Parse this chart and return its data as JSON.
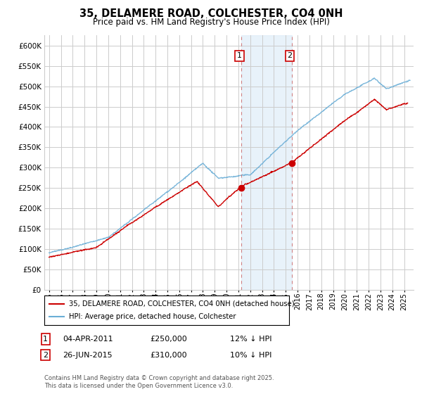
{
  "title": "35, DELAMERE ROAD, COLCHESTER, CO4 0NH",
  "subtitle": "Price paid vs. HM Land Registry's House Price Index (HPI)",
  "ytick_values": [
    0,
    50000,
    100000,
    150000,
    200000,
    250000,
    300000,
    350000,
    400000,
    450000,
    500000,
    550000,
    600000
  ],
  "ylim": [
    0,
    625000
  ],
  "hpi_color": "#6baed6",
  "price_color": "#cc0000",
  "marker1_date": 2011.25,
  "marker2_date": 2015.5,
  "marker1_price": 250000,
  "marker2_price": 310000,
  "legend_label1": "35, DELAMERE ROAD, COLCHESTER, CO4 0NH (detached house)",
  "legend_label2": "HPI: Average price, detached house, Colchester",
  "footer": "Contains HM Land Registry data © Crown copyright and database right 2025.\nThis data is licensed under the Open Government Licence v3.0.",
  "background_color": "#ffffff",
  "grid_color": "#cccccc",
  "shaded_region_color": "#daeaf7",
  "shaded_alpha": 0.6
}
